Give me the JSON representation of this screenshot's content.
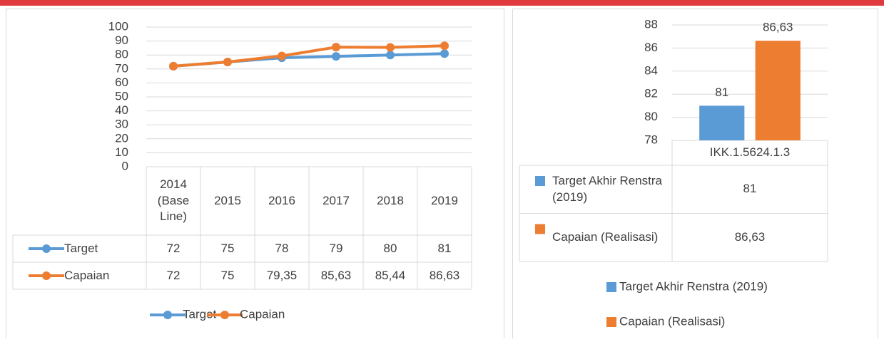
{
  "chart_data": [
    {
      "type": "line",
      "categories": [
        "2014 (Base Line)",
        "2015",
        "2016",
        "2017",
        "2018",
        "2019"
      ],
      "series": [
        {
          "name": "Target",
          "color": "#5b9bd5",
          "values": [
            72,
            75,
            78,
            79,
            80,
            81
          ],
          "value_labels": [
            "72",
            "75",
            "78",
            "79",
            "80",
            "81"
          ]
        },
        {
          "name": "Capaian",
          "color": "#ed7d31",
          "values": [
            72,
            75,
            79.35,
            85.63,
            85.44,
            86.63
          ],
          "value_labels": [
            "72",
            "75",
            "79,35",
            "85,63",
            "85,44",
            "86,63"
          ]
        }
      ],
      "ylim": [
        0,
        100
      ],
      "yticks": [
        0,
        10,
        20,
        30,
        40,
        50,
        60,
        70,
        80,
        90,
        100
      ],
      "grid": true,
      "data_table": true,
      "legend": "bottom"
    },
    {
      "type": "bar",
      "categories": [
        "IKK.1.5624.1.3"
      ],
      "series": [
        {
          "name": "Target Akhir Renstra (2019)",
          "color": "#5b9bd5",
          "values": [
            81
          ],
          "value_labels": [
            "81"
          ]
        },
        {
          "name": "Capaian (Realisasi)",
          "color": "#ed7d31",
          "values": [
            86.63
          ],
          "value_labels": [
            "86,63"
          ]
        }
      ],
      "ylim": [
        78,
        88
      ],
      "yticks": [
        78,
        80,
        82,
        84,
        86,
        88
      ],
      "grid": true,
      "data_table": true,
      "data_labels": true,
      "legend": "bottom"
    }
  ]
}
